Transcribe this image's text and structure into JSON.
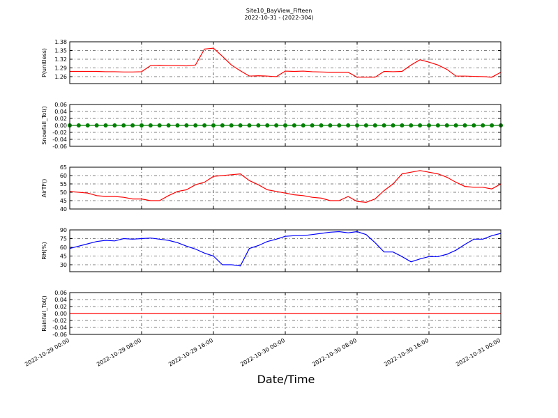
{
  "title": "Site10_BayView_Fifteen",
  "subtitle": "2022-10-31 - (2022-304)",
  "xlabel": "Date/Time",
  "xlim": [
    "2022-10-29 00:00",
    "2022-10-31 00:00"
  ],
  "xticks": [
    "2022-10-29 00:00",
    "2022-10-29 08:00",
    "2022-10-29 16:00",
    "2022-10-30 00:00",
    "2022-10-30 08:00",
    "2022-10-30 16:00",
    "2022-10-31 00:00"
  ],
  "x": [
    "2022-10-29 00:00",
    "2022-10-29 01:00",
    "2022-10-29 02:00",
    "2022-10-29 03:00",
    "2022-10-29 04:00",
    "2022-10-29 05:00",
    "2022-10-29 06:00",
    "2022-10-29 07:00",
    "2022-10-29 08:00",
    "2022-10-29 09:00",
    "2022-10-29 10:00",
    "2022-10-29 11:00",
    "2022-10-29 12:00",
    "2022-10-29 13:00",
    "2022-10-29 14:00",
    "2022-10-29 15:00",
    "2022-10-29 16:00",
    "2022-10-29 17:00",
    "2022-10-29 18:00",
    "2022-10-29 19:00",
    "2022-10-29 20:00",
    "2022-10-29 21:00",
    "2022-10-29 22:00",
    "2022-10-29 23:00",
    "2022-10-30 00:00",
    "2022-10-30 01:00",
    "2022-10-30 02:00",
    "2022-10-30 03:00",
    "2022-10-30 04:00",
    "2022-10-30 05:00",
    "2022-10-30 06:00",
    "2022-10-30 07:00",
    "2022-10-30 08:00",
    "2022-10-30 09:00",
    "2022-10-30 10:00",
    "2022-10-30 11:00",
    "2022-10-30 12:00",
    "2022-10-30 13:00",
    "2022-10-30 14:00",
    "2022-10-30 15:00",
    "2022-10-30 16:00",
    "2022-10-30 17:00",
    "2022-10-30 18:00",
    "2022-10-30 19:00",
    "2022-10-30 20:00",
    "2022-10-30 21:00",
    "2022-10-30 22:00",
    "2022-10-30 23:00",
    "2022-10-31 00:00"
  ],
  "chart_data": [
    {
      "type": "line",
      "ylabel": "P(unitless)",
      "color": "#ff0000",
      "marker": false,
      "grid": true,
      "ylim": [
        1.236,
        1.38
      ],
      "yticks": [
        1.26,
        1.29,
        1.32,
        1.35,
        1.38
      ],
      "values": [
        1.278,
        1.278,
        1.278,
        1.278,
        1.277,
        1.277,
        1.276,
        1.276,
        1.277,
        1.298,
        1.299,
        1.298,
        1.298,
        1.297,
        1.3,
        1.355,
        1.358,
        1.33,
        1.3,
        1.28,
        1.262,
        1.263,
        1.262,
        1.26,
        1.279,
        1.278,
        1.279,
        1.277,
        1.276,
        1.275,
        1.275,
        1.275,
        1.258,
        1.258,
        1.258,
        1.278,
        1.277,
        1.278,
        1.3,
        1.318,
        1.31,
        1.3,
        1.285,
        1.262,
        1.262,
        1.261,
        1.26,
        1.258,
        1.275
      ]
    },
    {
      "type": "line",
      "ylabel": "Snowfall_Tot()",
      "color": "#008000",
      "marker": true,
      "grid": true,
      "ylim": [
        -0.06,
        0.06
      ],
      "yticks": [
        -0.06,
        -0.04,
        -0.02,
        {
          "value": 0,
          "label": "0.00"
        },
        0.02,
        0.04,
        0.06
      ],
      "values": [
        0,
        0,
        0,
        0,
        0,
        0,
        0,
        0,
        0,
        0,
        0,
        0,
        0,
        0,
        0,
        0,
        0,
        0,
        0,
        0,
        0,
        0,
        0,
        0,
        0,
        0,
        0,
        0,
        0,
        0,
        0,
        0,
        0,
        0,
        0,
        0,
        0,
        0,
        0,
        0,
        0,
        0,
        0,
        0,
        0,
        0,
        0,
        0,
        0
      ]
    },
    {
      "type": "line",
      "ylabel": "AirTF()",
      "color": "#ff0000",
      "marker": false,
      "grid": true,
      "ylim": [
        40,
        65
      ],
      "yticks": [
        40,
        45,
        50,
        55,
        60,
        65
      ],
      "values": [
        50.5,
        50,
        49.5,
        48,
        47.5,
        47.5,
        47,
        46,
        46,
        45,
        45,
        48,
        50.5,
        51.5,
        54.5,
        56,
        59.5,
        60,
        60.5,
        61,
        57,
        54.5,
        51.5,
        50.5,
        49.5,
        48.5,
        48,
        47,
        46.5,
        45,
        45,
        47.5,
        44.5,
        44,
        46,
        51,
        55,
        61,
        62,
        63,
        62,
        61,
        59,
        56,
        53.5,
        53,
        53,
        52,
        55
      ]
    },
    {
      "type": "line",
      "ylabel": "RH(%)",
      "color": "#0000ff",
      "marker": false,
      "grid": true,
      "ylim": [
        18,
        90
      ],
      "yticks": [
        30,
        45,
        60,
        75,
        90
      ],
      "values": [
        58,
        62,
        66,
        70,
        72,
        71,
        75,
        74,
        75,
        76,
        74,
        72,
        68,
        62,
        57,
        50,
        45,
        30,
        30,
        28,
        58,
        63,
        70,
        74,
        79,
        80,
        80,
        82,
        84,
        86,
        87,
        85,
        87,
        82,
        68,
        52,
        52,
        44,
        35,
        40,
        44,
        44,
        48,
        55,
        65,
        74,
        74,
        80,
        84
      ]
    },
    {
      "type": "line",
      "ylabel": "Rainfall_Tot()",
      "color": "#ff0000",
      "marker": false,
      "grid": true,
      "ylim": [
        -0.06,
        0.06
      ],
      "yticks": [
        -0.06,
        -0.04,
        -0.02,
        {
          "value": 0,
          "label": "0.00"
        },
        0.02,
        0.04,
        0.06
      ],
      "values": [
        0,
        0,
        0,
        0,
        0,
        0,
        0,
        0,
        0,
        0,
        0,
        0,
        0,
        0,
        0,
        0,
        0,
        0,
        0,
        0,
        0,
        0,
        0,
        0,
        0,
        0,
        0,
        0,
        0,
        0,
        0,
        0,
        0,
        0,
        0,
        0,
        0,
        0,
        0,
        0,
        0,
        0,
        0,
        0,
        0,
        0,
        0,
        0,
        0
      ]
    }
  ]
}
